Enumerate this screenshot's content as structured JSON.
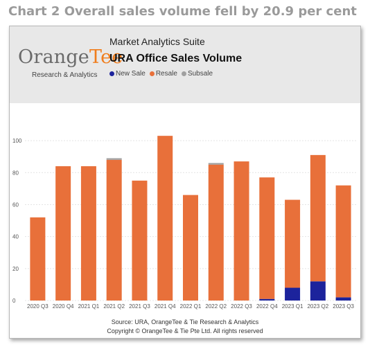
{
  "heading": "Chart 2 Overall sales volume fell by 20.9 per cent",
  "brand": {
    "name_part1": "Orange",
    "name_part2": "Tee",
    "tagline": "Research & Analytics"
  },
  "suite_name": "Market Analytics Suite",
  "chart_data": {
    "type": "bar",
    "stacked": true,
    "title": "URA Office Sales Volume",
    "xlabel": "",
    "ylabel": "",
    "ylim": [
      0,
      110
    ],
    "yticks": [
      0,
      20,
      40,
      60,
      80,
      100
    ],
    "grid": true,
    "legend_position": "top-left",
    "categories": [
      "2020 Q3",
      "2020 Q4",
      "2021 Q1",
      "2021 Q2",
      "2021 Q3",
      "2021 Q4",
      "2022 Q1",
      "2022 Q2",
      "2022 Q3",
      "2022 Q4",
      "2023 Q1",
      "2023 Q2",
      "2023 Q3"
    ],
    "series": [
      {
        "name": "New Sale",
        "color": "#1c239c",
        "values": [
          0,
          0,
          0,
          0,
          0,
          0,
          0,
          0,
          0,
          1,
          8,
          12,
          2
        ]
      },
      {
        "name": "Resale",
        "color": "#e8703a",
        "values": [
          52,
          84,
          84,
          88,
          75,
          103,
          66,
          85,
          87,
          76,
          55,
          79,
          70
        ]
      },
      {
        "name": "Subsale",
        "color": "#a0a0a0",
        "values": [
          0,
          0,
          0,
          1,
          0,
          0,
          0,
          1,
          0,
          0,
          0,
          0,
          0
        ]
      }
    ]
  },
  "source_line1": "Source: URA, OrangeTee & Tie Research & Analytics",
  "source_line2": "Copyright © OrangeTee & Tie Pte Ltd. All rights reserved"
}
